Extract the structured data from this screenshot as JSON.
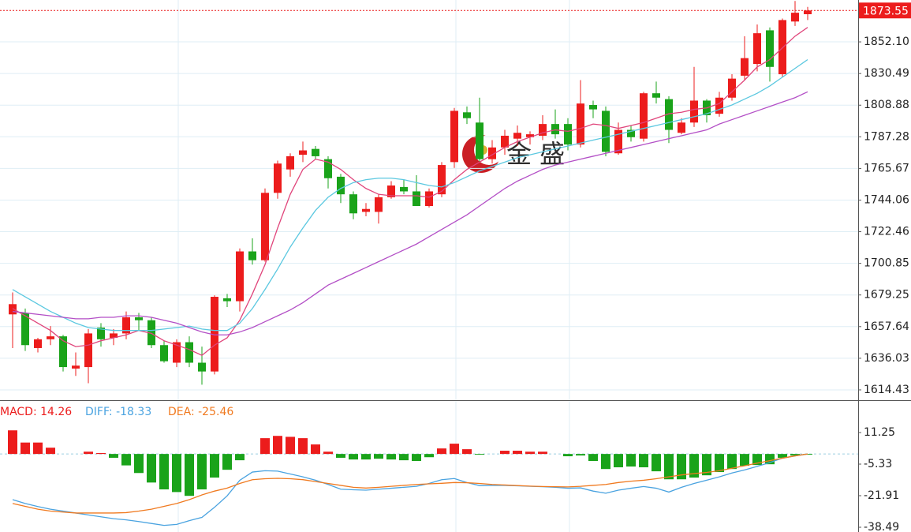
{
  "watermark": "金 盛",
  "chart_data": [
    {
      "type": "candlestick",
      "ylim": [
        1607.4,
        1880.7
      ],
      "yticks": [
        1614.43,
        1636.03,
        1657.64,
        1679.25,
        1700.85,
        1722.46,
        1744.06,
        1765.67,
        1787.28,
        1808.88,
        1830.49,
        {
          "value": 1852.1,
          "label": "1852.10"
        }
      ],
      "grid": true,
      "up_color": "#ec1c1c",
      "down_color": "#1aa31a",
      "open": [
        1666,
        1667,
        1643,
        1649,
        1651,
        1629,
        1630,
        1657,
        1650,
        1653,
        1664,
        1662,
        1645,
        1633,
        1647,
        1633,
        1627,
        1677,
        1675,
        1709,
        1703,
        1749,
        1765,
        1775,
        1779,
        1772,
        1760,
        1748,
        1736,
        1736,
        1746,
        1753,
        1750,
        1740,
        1748,
        1770,
        1804,
        1797,
        1772,
        1780,
        1786,
        1787,
        1788,
        1796,
        1796,
        1782,
        1809,
        1805,
        1776,
        1792,
        1786,
        1817,
        1813,
        1790,
        1797,
        1812,
        1803,
        1814,
        1829,
        1837,
        1860,
        1830,
        1866,
        1871
      ],
      "high": [
        1681,
        1670,
        1650,
        1658,
        1652,
        1640,
        1656,
        1660,
        1656,
        1668,
        1667,
        1664,
        1648,
        1649,
        1651,
        1644,
        1679,
        1680,
        1711,
        1718,
        1752,
        1771,
        1776,
        1784,
        1781,
        1774,
        1762,
        1750,
        1742,
        1748,
        1757,
        1758,
        1761,
        1752,
        1770,
        1807,
        1808,
        1814,
        1785,
        1792,
        1795,
        1791,
        1802,
        1806,
        1800,
        1826,
        1812,
        1808,
        1797,
        1795,
        1818,
        1825,
        1815,
        1800,
        1835,
        1813,
        1818,
        1830,
        1856,
        1864,
        1862,
        1868,
        1880,
        1876
      ],
      "low": [
        1643,
        1641,
        1640,
        1645,
        1627,
        1624,
        1619,
        1644,
        1645,
        1649,
        1655,
        1643,
        1633,
        1630,
        1630,
        1618,
        1625,
        1671,
        1668,
        1700,
        1702,
        1745,
        1760,
        1770,
        1772,
        1752,
        1742,
        1731,
        1733,
        1728,
        1745,
        1748,
        1740,
        1739,
        1746,
        1766,
        1796,
        1770,
        1769,
        1775,
        1781,
        1782,
        1785,
        1786,
        1778,
        1780,
        1800,
        1774,
        1775,
        1784,
        1784,
        1810,
        1783,
        1789,
        1794,
        1797,
        1801,
        1812,
        1826,
        1832,
        1825,
        1828,
        1863,
        1867
      ],
      "close": [
        1673,
        1645,
        1649,
        1651,
        1630,
        1631,
        1653,
        1649,
        1653,
        1664,
        1662,
        1645,
        1634,
        1647,
        1633,
        1627,
        1678,
        1675,
        1709,
        1703,
        1749,
        1769,
        1774,
        1778,
        1774,
        1759,
        1748,
        1735,
        1738,
        1746,
        1754,
        1750,
        1740,
        1750,
        1768,
        1805,
        1800,
        1772,
        1780,
        1788,
        1790,
        1789,
        1796,
        1789,
        1782,
        1810,
        1806,
        1777,
        1792,
        1787,
        1817,
        1814,
        1792,
        1797,
        1812,
        1802,
        1814,
        1827,
        1841,
        1858,
        1835,
        1867,
        1872,
        1873.55
      ],
      "lines": [
        {
          "color": "#e0457b",
          "values": [
            1670,
            1665,
            1660,
            1655,
            1648,
            1644,
            1645,
            1648,
            1650,
            1652,
            1655,
            1653,
            1648,
            1645,
            1642,
            1638,
            1645,
            1650,
            1662,
            1680,
            1700,
            1725,
            1748,
            1765,
            1772,
            1770,
            1765,
            1758,
            1752,
            1748,
            1747,
            1747,
            1747,
            1746,
            1750,
            1758,
            1765,
            1770,
            1775,
            1780,
            1784,
            1787,
            1790,
            1792,
            1791,
            1793,
            1796,
            1795,
            1793,
            1795,
            1797,
            1800,
            1803,
            1804,
            1806,
            1807,
            1810,
            1818,
            1826,
            1835,
            1840,
            1848,
            1856,
            1862
          ]
        },
        {
          "color": "#5bc8e0",
          "values": [
            1683,
            1678,
            1673,
            1668,
            1664,
            1660,
            1657,
            1656,
            1655,
            1655,
            1655,
            1655,
            1656,
            1657,
            1658,
            1656,
            1655,
            1655,
            1660,
            1670,
            1683,
            1697,
            1712,
            1725,
            1737,
            1746,
            1752,
            1756,
            1758,
            1759,
            1759,
            1758,
            1756,
            1754,
            1753,
            1756,
            1760,
            1764,
            1767,
            1770,
            1773,
            1775,
            1777,
            1779,
            1781,
            1783,
            1785,
            1787,
            1789,
            1791,
            1793,
            1795,
            1797,
            1799,
            1801,
            1803,
            1806,
            1809,
            1813,
            1817,
            1822,
            1828,
            1834,
            1840
          ]
        },
        {
          "color": "#b34fc6",
          "values": [
            1668,
            1667,
            1666,
            1665,
            1664,
            1663,
            1663,
            1664,
            1664,
            1665,
            1665,
            1664,
            1662,
            1660,
            1657,
            1654,
            1652,
            1652,
            1654,
            1657,
            1661,
            1665,
            1669,
            1674,
            1680,
            1686,
            1690,
            1694,
            1698,
            1702,
            1706,
            1710,
            1714,
            1719,
            1724,
            1729,
            1734,
            1740,
            1746,
            1752,
            1757,
            1761,
            1765,
            1768,
            1770,
            1772,
            1774,
            1776,
            1778,
            1780,
            1782,
            1784,
            1786,
            1788,
            1790,
            1792,
            1796,
            1799,
            1802,
            1805,
            1808,
            1811,
            1814,
            1818
          ]
        }
      ],
      "last_price": 1873.55,
      "last_color": "#ec1c1c"
    },
    {
      "type": "macd",
      "ylim": [
        -40.98,
        27.83
      ],
      "yticks": [
        11.25,
        -5.33,
        -21.91,
        -38.49
      ],
      "up_color": "#ec1c1c",
      "down_color": "#1aa31a",
      "macd_label": "MACD: 14.26",
      "diff_label": "DIFF: -18.33",
      "dea_label": "DEA: -25.46",
      "histogram": [
        12.4,
        6,
        6,
        3.3,
        0,
        0,
        1.2,
        0.5,
        -2,
        -6,
        -10,
        -15,
        -18.6,
        -20,
        -22,
        -18.6,
        -12.4,
        -8.3,
        -3.3,
        0,
        8.3,
        9.5,
        9,
        8.3,
        5,
        1.2,
        -2,
        -2.9,
        -2.9,
        -2.5,
        -2.9,
        -3.3,
        -3.7,
        -1.7,
        2.9,
        5.4,
        2.5,
        -0.4,
        0,
        1.7,
        1.7,
        1.2,
        1.2,
        0,
        -1.2,
        -0.8,
        -3.7,
        -7.9,
        -7,
        -6.6,
        -7,
        -9.1,
        -13.3,
        -13.3,
        -12.4,
        -11.2,
        -9.5,
        -7.9,
        -6.2,
        -5.8,
        -5.4,
        -2,
        -0.8,
        -0.4
      ],
      "lines": [
        {
          "color": "#4aa3e0",
          "values": [
            -24,
            -26,
            -27.6,
            -29,
            -30,
            -31,
            -32,
            -33,
            -34,
            -34.6,
            -35.5,
            -36.5,
            -37.5,
            -37,
            -35,
            -33.3,
            -28,
            -22,
            -13.8,
            -9.5,
            -8.8,
            -9,
            -10.5,
            -12,
            -13.8,
            -16,
            -18.5,
            -18.8,
            -19,
            -18.5,
            -18,
            -17.5,
            -17,
            -15.5,
            -13.5,
            -12.9,
            -15,
            -16.6,
            -16.5,
            -16.5,
            -16.7,
            -17,
            -17.2,
            -17.5,
            -18,
            -17.8,
            -19.5,
            -20.6,
            -19,
            -18,
            -17.1,
            -18,
            -20,
            -17.5,
            -15.5,
            -13.8,
            -12,
            -10,
            -8.4,
            -6.5,
            -4.5,
            -2.2,
            -1,
            0
          ]
        },
        {
          "color": "#f07a20",
          "values": [
            -26,
            -27.5,
            -29,
            -30,
            -30.5,
            -31,
            -31,
            -31,
            -31,
            -30.8,
            -30,
            -29,
            -27.5,
            -26,
            -24,
            -21.5,
            -19.5,
            -17.9,
            -15.5,
            -13.5,
            -13,
            -12.8,
            -13,
            -13.5,
            -14.5,
            -15.5,
            -16.5,
            -17.5,
            -17.9,
            -17.5,
            -17,
            -16.5,
            -16,
            -15.7,
            -15.4,
            -15,
            -15.1,
            -15.5,
            -16,
            -16.3,
            -16.6,
            -16.9,
            -17.1,
            -17.2,
            -17.3,
            -17,
            -16.5,
            -16,
            -15,
            -14.3,
            -13.8,
            -13,
            -12,
            -11,
            -10.3,
            -9.7,
            -8.8,
            -7.5,
            -6.2,
            -4.8,
            -3.5,
            -2.2,
            -1,
            0
          ]
        }
      ]
    }
  ]
}
